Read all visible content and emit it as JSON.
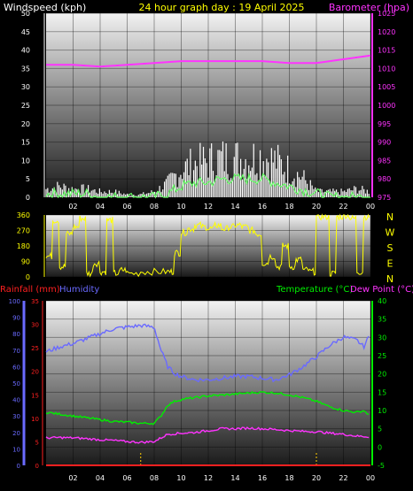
{
  "colors": {
    "background": "#000000",
    "wind_avg": "#ffffff",
    "wind_gust": "#c8c8c8",
    "wind_mean": "#66ff66",
    "barometer": "#ff33ff",
    "direction": "#ffff00",
    "humidity": "#6a6aff",
    "temperature": "#00ee00",
    "dew_point": "#ff33ff",
    "rainfall": "#ff2020",
    "marker": "#ffcc00",
    "title": "#ffff00",
    "wind_label": "#ffffff",
    "baro_label": "#ff33ff"
  },
  "header": {
    "title": "24 hour graph day : 19 April 2025",
    "wind_label": "Windspeed (kph)",
    "baro_label": "Barometer (hpa)"
  },
  "bottom_header": {
    "rain_label": "Rainfall (mm)",
    "humidity_label": "Humidity",
    "temp_label": "Temperature (°C)",
    "dew_label": "Dew Point (°C)"
  },
  "chart_data": [
    {
      "type": "line",
      "panel": "wind_baro",
      "xlabel": "",
      "x_ticks": [
        "02",
        "04",
        "06",
        "08",
        "10",
        "12",
        "14",
        "16",
        "18",
        "20",
        "22",
        "00"
      ],
      "xlim": [
        0,
        24
      ],
      "y_left": {
        "label": "Windspeed (kph)",
        "ylim": [
          0,
          50
        ],
        "ticks": [
          "0",
          "5",
          "10",
          "15",
          "20",
          "25",
          "30",
          "35",
          "40",
          "45",
          "50"
        ]
      },
      "y_right": {
        "label": "Barometer (hpa)",
        "ylim": [
          975,
          1025
        ],
        "ticks": [
          "975",
          "980",
          "985",
          "990",
          "995",
          "1000",
          "1005",
          "1010",
          "1015",
          "1020",
          "1025"
        ]
      },
      "series": [
        {
          "axis": "right",
          "x": [
            0,
            2,
            4,
            6,
            8,
            10,
            12,
            14,
            16,
            18,
            20,
            22,
            24
          ],
          "values": [
            1011,
            1011,
            1010.5,
            1011,
            1011.5,
            1012,
            1012,
            1012,
            1012,
            1011.5,
            1011.5,
            1012.5,
            1013.5
          ]
        },
        {
          "axis": "left",
          "x": [
            0,
            1,
            2,
            3,
            4,
            5,
            6,
            7,
            8,
            9,
            10,
            11,
            12,
            13,
            14,
            15,
            16,
            17,
            18,
            19,
            20,
            21,
            22,
            23,
            24
          ],
          "values": [
            3,
            4,
            3,
            3,
            2,
            2,
            1,
            1,
            2,
            5,
            10,
            12,
            13,
            14,
            14,
            14,
            15,
            13,
            10,
            7,
            2,
            2,
            2,
            3,
            2
          ]
        },
        {
          "axis": "left",
          "x": [
            0,
            1,
            2,
            3,
            4,
            5,
            6,
            7,
            8,
            9,
            10,
            11,
            12,
            13,
            14,
            15,
            16,
            17,
            18,
            19,
            20,
            21,
            22,
            23,
            24
          ],
          "values": [
            1,
            1,
            1,
            1,
            0,
            0,
            0,
            0,
            0,
            1,
            3,
            4,
            4,
            5,
            5,
            5,
            5,
            4,
            3,
            2,
            1,
            0,
            0,
            0,
            0
          ]
        }
      ]
    },
    {
      "type": "line",
      "panel": "wind_direction",
      "xlim": [
        0,
        24
      ],
      "ylim": [
        0,
        360
      ],
      "y_ticks": [
        "0",
        "90",
        "180",
        "270",
        "360"
      ],
      "compass": [
        "N",
        "W",
        "S",
        "E",
        "N"
      ],
      "series": [
        {
          "x": [
            0,
            0.5,
            1,
            1.5,
            2,
            2.5,
            3,
            3.5,
            4,
            4.5,
            5,
            5.5,
            6,
            7,
            8,
            9,
            9.5,
            10,
            10.5,
            11,
            11.5,
            12,
            12.5,
            13,
            13.5,
            14,
            14.5,
            15,
            15.5,
            16,
            16.5,
            17,
            17.5,
            18,
            18.5,
            19,
            19.5,
            20,
            20.5,
            21,
            21.5,
            22,
            22.5,
            23,
            23.5,
            24
          ],
          "values": [
            120,
            330,
            60,
            250,
            290,
            340,
            20,
            80,
            30,
            330,
            20,
            40,
            20,
            30,
            30,
            30,
            140,
            260,
            280,
            300,
            290,
            280,
            300,
            280,
            290,
            300,
            290,
            270,
            250,
            80,
            120,
            60,
            180,
            60,
            100,
            40,
            30,
            350,
            350,
            20,
            350,
            360,
            340,
            30,
            350,
            340
          ]
        }
      ]
    },
    {
      "type": "line",
      "panel": "temp_hum_rain",
      "xlim": [
        0,
        24
      ],
      "y_left_outer": {
        "label": "Humidity",
        "ylim": [
          0,
          100
        ],
        "ticks": [
          "0",
          "10",
          "20",
          "30",
          "40",
          "50",
          "60",
          "70",
          "80",
          "90",
          "100"
        ]
      },
      "y_left_inner": {
        "label": "Rainfall (mm)",
        "ylim": [
          0,
          35
        ],
        "ticks": [
          "0",
          "5",
          "10",
          "15",
          "20",
          "25",
          "30",
          "35"
        ]
      },
      "y_right": {
        "label": "Temperature (°C)",
        "ylim": [
          -5,
          40
        ],
        "ticks": [
          "-5",
          "0",
          "5",
          "10",
          "15",
          "20",
          "25",
          "30",
          "35",
          "40"
        ]
      },
      "series": [
        {
          "name": "Humidity",
          "x": [
            0,
            1,
            2,
            3,
            4,
            5,
            6,
            7,
            8,
            8.5,
            9,
            9.5,
            10,
            11,
            12,
            13,
            14,
            15,
            16,
            17,
            18,
            19,
            20,
            21,
            22,
            23,
            23.5,
            24
          ],
          "values": [
            69,
            72,
            74,
            77,
            80,
            83,
            84,
            85,
            84,
            70,
            60,
            56,
            54,
            52,
            52,
            53,
            54,
            54,
            53,
            52,
            55,
            60,
            66,
            73,
            78,
            76,
            72,
            80
          ]
        },
        {
          "name": "Temperature (°C)",
          "x": [
            0,
            1,
            2,
            3,
            4,
            5,
            6,
            7,
            8,
            8.5,
            9,
            9.5,
            10,
            11,
            12,
            13,
            14,
            15,
            16,
            17,
            18,
            19,
            20,
            21,
            22,
            23,
            23.5,
            24
          ],
          "values": [
            9.5,
            9,
            8.5,
            8,
            7.5,
            7,
            6.8,
            6.5,
            6.5,
            8.5,
            11.5,
            12.5,
            13,
            13.5,
            14,
            14.2,
            14.5,
            14.8,
            15,
            14.8,
            14.3,
            13.5,
            12.5,
            11,
            10,
            9.5,
            10,
            8.5
          ]
        },
        {
          "name": "Dew Point (°C)",
          "x": [
            0,
            1,
            2,
            3,
            4,
            5,
            6,
            7,
            8,
            8.5,
            9,
            10,
            11,
            12,
            13,
            14,
            15,
            16,
            17,
            18,
            19,
            20,
            21,
            22,
            23,
            24
          ],
          "values": [
            2.5,
            2.6,
            2.5,
            2.3,
            2,
            1.8,
            1.5,
            1.3,
            1.5,
            2.5,
            3.5,
            3.8,
            4,
            4.5,
            5,
            5,
            5.2,
            5,
            4.8,
            4.5,
            4.3,
            4.2,
            3.8,
            3.5,
            3,
            2.8
          ]
        },
        {
          "name": "Rainfall (mm)",
          "x": [
            0,
            24
          ],
          "values": [
            0,
            0
          ]
        }
      ],
      "x_ticks": [
        "02",
        "04",
        "06",
        "08",
        "10",
        "12",
        "14",
        "16",
        "18",
        "20",
        "22",
        "00"
      ],
      "markers_x": [
        7,
        20
      ]
    }
  ]
}
